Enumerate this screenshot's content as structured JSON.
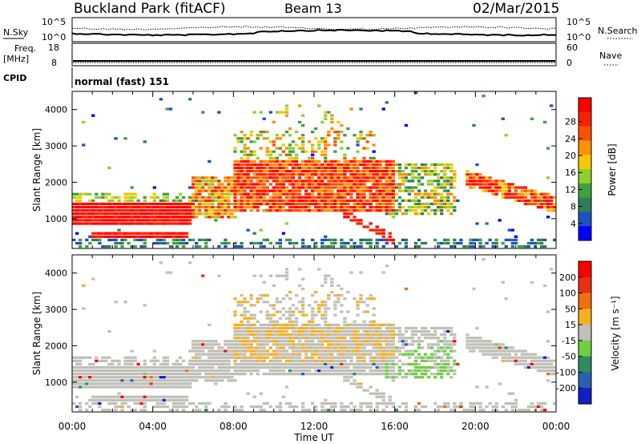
{
  "header": {
    "station": "Buckland Park (fitACF)",
    "beam": "Beam 13",
    "date": "02/Mar/2015"
  },
  "strips": {
    "nsky": {
      "label": "N.Sky",
      "ticks": [
        "10^5",
        "10^0"
      ]
    },
    "nsearch": {
      "label": "N.Search",
      "ticks": [
        "10^5",
        "10^0"
      ]
    },
    "freq": {
      "label_line1": "Freq.",
      "label_line2": "[MHz]",
      "ticks": [
        "18",
        "8"
      ]
    },
    "nave": {
      "label": "Nave",
      "ticks": [
        "60",
        "0"
      ]
    },
    "cpid": {
      "label": "CPID",
      "text": "normal (fast) 151"
    }
  },
  "chart_data": [
    {
      "type": "heatmap",
      "name": "Power",
      "xlabel": "",
      "ylabel": "Slant Range [km]",
      "xlim_hours": [
        0,
        24
      ],
      "ylim": [
        180,
        4500
      ],
      "y_ticks": [
        "1000",
        "2000",
        "3000",
        "4000"
      ],
      "colorbar": {
        "label": "Power [dB]",
        "ticks": [
          "4",
          "8",
          "12",
          "16",
          "20",
          "24",
          "28"
        ],
        "colors": [
          "#0000ff",
          "#2050c0",
          "#2f7d5a",
          "#40a040",
          "#8fd030",
          "#f5c800",
          "#ff9000",
          "#ff5000",
          "#ff2000",
          "#ff0000"
        ]
      }
    },
    {
      "type": "heatmap",
      "name": "Velocity",
      "xlabel": "Time UT",
      "ylabel": "Slant Range [km]",
      "xlim_hours": [
        0,
        24
      ],
      "ylim": [
        180,
        4500
      ],
      "x_ticks": [
        "00:00",
        "04:00",
        "08:00",
        "12:00",
        "16:00",
        "20:00",
        "00:00"
      ],
      "y_ticks": [
        "1000",
        "2000",
        "3000",
        "4000"
      ],
      "colorbar": {
        "label": "Velocity [m s⁻¹]",
        "ticks": [
          "200",
          "100",
          "50",
          "15",
          "-15",
          "-50",
          "-100",
          "-200"
        ],
        "colors": [
          "#1020c0",
          "#2a60b0",
          "#2f8a60",
          "#6ed040",
          "#c0c0b8",
          "#f5b020",
          "#f07010",
          "#e83010",
          "#ff0000"
        ]
      }
    }
  ]
}
